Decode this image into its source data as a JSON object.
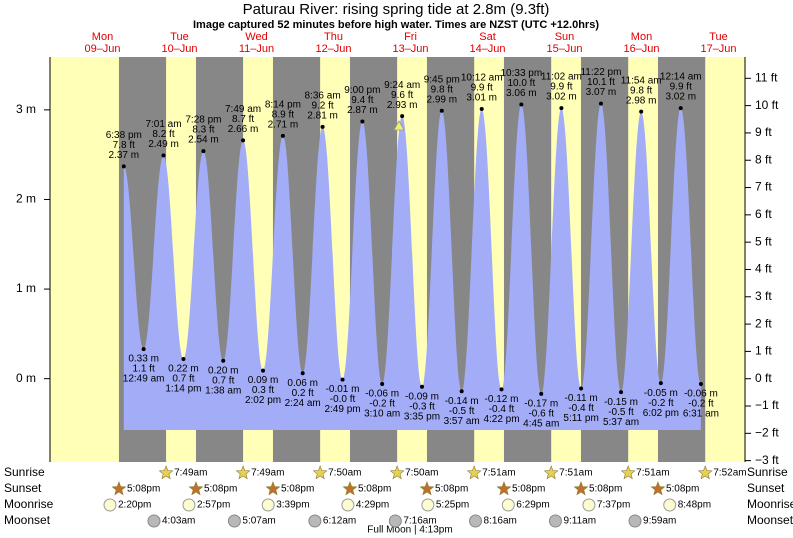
{
  "chart_data": {
    "type": "tide",
    "title": "Paturau River: rising  spring tide at 2.8m (9.3ft)",
    "subtitle": "Image captured 52 minutes before high water. Times are NZST (UTC +12.0hrs)",
    "days": [
      {
        "weekday": "Mon",
        "date": "09–Jun"
      },
      {
        "weekday": "Tue",
        "date": "10–Jun"
      },
      {
        "weekday": "Wed",
        "date": "11–Jun"
      },
      {
        "weekday": "Thu",
        "date": "12–Jun"
      },
      {
        "weekday": "Fri",
        "date": "13–Jun"
      },
      {
        "weekday": "Sat",
        "date": "14–Jun"
      },
      {
        "weekday": "Sun",
        "date": "15–Jun"
      },
      {
        "weekday": "Mon",
        "date": "16–Jun"
      },
      {
        "weekday": "Tue",
        "date": "17–Jun"
      }
    ],
    "ylim": [
      -0.93,
      3.59
    ],
    "yticks": [
      {
        "value": 3,
        "label": "3 m"
      },
      {
        "value": 2,
        "label": "2 m"
      },
      {
        "value": 1,
        "label": "1 m"
      },
      {
        "value": 0,
        "label": "0 m"
      }
    ],
    "y2lim": [
      -3.05,
      11.78
    ],
    "y2ticks": [
      {
        "value": 11,
        "label": "11 ft"
      },
      {
        "value": 10,
        "label": "10 ft"
      },
      {
        "value": 9,
        "label": "9 ft"
      },
      {
        "value": 8,
        "label": "8 ft"
      },
      {
        "value": 7,
        "label": "7 ft"
      },
      {
        "value": 6,
        "label": "6 ft"
      },
      {
        "value": 5,
        "label": "5 ft"
      },
      {
        "value": 4,
        "label": "4 ft"
      },
      {
        "value": 3,
        "label": "3 ft"
      },
      {
        "value": 2,
        "label": "2 ft"
      },
      {
        "value": 1,
        "label": "1 ft"
      },
      {
        "value": 0,
        "label": "0 ft"
      },
      {
        "value": -1,
        "label": "−1 ft"
      },
      {
        "value": -2,
        "label": "−2 ft"
      },
      {
        "value": -3,
        "label": "−3 ft"
      }
    ],
    "color": "#a3acf6",
    "extremes": [
      {
        "time": "6:38 pm",
        "height_m": 2.37,
        "label_m": "2.37 m",
        "height_ft": 7.8,
        "label_ft": "7.8 ft"
      },
      {
        "time": "12:49 am",
        "height_m": 0.33,
        "label_m": "0.33 m",
        "height_ft": 1.1,
        "label_ft": "1.1 ft"
      },
      {
        "time": "7:01 am",
        "height_m": 2.49,
        "label_m": "2.49 m",
        "height_ft": 8.2,
        "label_ft": "8.2 ft"
      },
      {
        "time": "1:14 pm",
        "height_m": 0.22,
        "label_m": "0.22 m",
        "height_ft": 0.7,
        "label_ft": "0.7 ft"
      },
      {
        "time": "7:28 pm",
        "height_m": 2.54,
        "label_m": "2.54 m",
        "height_ft": 8.3,
        "label_ft": "8.3 ft"
      },
      {
        "time": "1:38 am",
        "height_m": 0.2,
        "label_m": "0.20 m",
        "height_ft": 0.7,
        "label_ft": "0.7 ft"
      },
      {
        "time": "7:49 am",
        "height_m": 2.66,
        "label_m": "2.66 m",
        "height_ft": 8.7,
        "label_ft": "8.7 ft"
      },
      {
        "time": "2:02 pm",
        "height_m": 0.09,
        "label_m": "0.09 m",
        "height_ft": 0.3,
        "label_ft": "0.3 ft"
      },
      {
        "time": "8:14 pm",
        "height_m": 2.71,
        "label_m": "2.71 m",
        "height_ft": 8.9,
        "label_ft": "8.9 ft"
      },
      {
        "time": "2:24 am",
        "height_m": 0.06,
        "label_m": "0.06 m",
        "height_ft": 0.2,
        "label_ft": "0.2 ft"
      },
      {
        "time": "8:36 am",
        "height_m": 2.81,
        "label_m": "2.81 m",
        "height_ft": 9.2,
        "label_ft": "9.2 ft"
      },
      {
        "time": "2:49 pm",
        "height_m": -0.01,
        "label_m": "-0.01 m",
        "height_ft": -0.0,
        "label_ft": "-0.0 ft"
      },
      {
        "time": "9:00 pm",
        "height_m": 2.87,
        "label_m": "2.87 m",
        "height_ft": 9.4,
        "label_ft": "9.4 ft"
      },
      {
        "time": "3:10 am",
        "height_m": -0.06,
        "label_m": "-0.06 m",
        "height_ft": -0.2,
        "label_ft": "-0.2 ft"
      },
      {
        "time": "9:24 am",
        "height_m": 2.93,
        "label_m": "2.93 m",
        "height_ft": 9.6,
        "label_ft": "9.6 ft"
      },
      {
        "time": "3:35 pm",
        "height_m": -0.09,
        "label_m": "-0.09 m",
        "height_ft": -0.3,
        "label_ft": "-0.3 ft"
      },
      {
        "time": "9:45 pm",
        "height_m": 2.99,
        "label_m": "2.99 m",
        "height_ft": 9.8,
        "label_ft": "9.8 ft"
      },
      {
        "time": "3:57 am",
        "height_m": -0.14,
        "label_m": "-0.14 m",
        "height_ft": -0.5,
        "label_ft": "-0.5 ft"
      },
      {
        "time": "10:12 am",
        "height_m": 3.01,
        "label_m": "3.01 m",
        "height_ft": 9.9,
        "label_ft": "9.9 ft"
      },
      {
        "time": "4:22 pm",
        "height_m": -0.12,
        "label_m": "-0.12 m",
        "height_ft": -0.4,
        "label_ft": "-0.4 ft"
      },
      {
        "time": "10:33 pm",
        "height_m": 3.06,
        "label_m": "3.06 m",
        "height_ft": 10.0,
        "label_ft": "10.0 ft"
      },
      {
        "time": "4:45 am",
        "height_m": -0.17,
        "label_m": "-0.17 m",
        "height_ft": -0.6,
        "label_ft": "-0.6 ft"
      },
      {
        "time": "11:02 am",
        "height_m": 3.02,
        "label_m": "3.02 m",
        "height_ft": 9.9,
        "label_ft": "9.9 ft"
      },
      {
        "time": "5:11 pm",
        "height_m": -0.11,
        "label_m": "-0.11 m",
        "height_ft": -0.4,
        "label_ft": "-0.4 ft"
      },
      {
        "time": "11:22 pm",
        "height_m": 3.07,
        "label_m": "3.07 m",
        "height_ft": 10.1,
        "label_ft": "10.1 ft"
      },
      {
        "time": "5:37 am",
        "height_m": -0.15,
        "label_m": "-0.15 m",
        "height_ft": -0.5,
        "label_ft": "-0.5 ft"
      },
      {
        "time": "11:54 am",
        "height_m": 2.98,
        "label_m": "2.98 m",
        "height_ft": 9.8,
        "label_ft": "9.8 ft"
      },
      {
        "time": "6:02 pm",
        "height_m": -0.05,
        "label_m": "-0.05 m",
        "height_ft": -0.2,
        "label_ft": "-0.2 ft"
      },
      {
        "time": "12:14 am",
        "height_m": 3.02,
        "label_m": "3.02 m",
        "height_ft": 9.9,
        "label_ft": "9.9 ft"
      },
      {
        "time": "6:31 am",
        "height_m": -0.06,
        "label_m": "-0.06 m",
        "height_ft": -0.2,
        "label_ft": "-0.2 ft"
      }
    ],
    "events": [
      {
        "name": "Sunrise",
        "times": [
          null,
          "7:49am",
          "7:49am",
          "7:50am",
          "7:50am",
          "7:51am",
          "7:51am",
          "7:51am",
          "7:52am"
        ]
      },
      {
        "name": "Sunset",
        "times": [
          "5:08pm",
          "5:08pm",
          "5:08pm",
          "5:08pm",
          "5:08pm",
          "5:08pm",
          "5:08pm",
          "5:08pm",
          null
        ]
      },
      {
        "name": "Moonrise",
        "times": [
          "2:20pm",
          "2:57pm",
          "3:39pm",
          "4:29pm",
          "5:25pm",
          "6:29pm",
          "7:37pm",
          "8:48pm",
          null
        ]
      },
      {
        "name": "Moonset",
        "times": [
          null,
          "4:03am",
          "5:07am",
          "6:12am",
          "7:16am",
          "8:16am",
          "9:11am",
          "9:59am",
          null
        ]
      }
    ],
    "note": "Full Moon | 4:13pm"
  }
}
